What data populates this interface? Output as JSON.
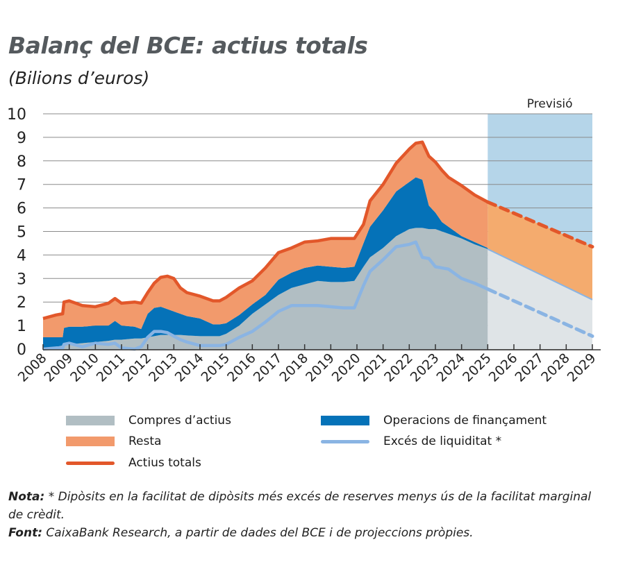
{
  "title": "Balanç del BCE: actius totals",
  "subtitle": "(Bilions d’euros)",
  "chart_data": {
    "type": "area",
    "title": "Balanç del BCE: actius totals",
    "ylabel": "(Bilions d’euros)",
    "ylim": [
      0,
      10
    ],
    "yticks": [
      "0",
      "1",
      "2",
      "3",
      "4",
      "5",
      "6",
      "7",
      "8",
      "9",
      "10"
    ],
    "xlim": [
      2008,
      2029
    ],
    "xticks": [
      "2008",
      "2009",
      "2010",
      "2011",
      "2012",
      "2013",
      "2014",
      "2015",
      "2016",
      "2017",
      "2018",
      "2019",
      "2020",
      "2021",
      "2022",
      "2023",
      "2024",
      "2025",
      "2026",
      "2027",
      "2028",
      "2029"
    ],
    "grid": true,
    "forecast_label": "Previsió",
    "forecast_range": [
      2025,
      2029
    ],
    "x": [
      2008,
      2008.5,
      2008.75,
      2008.8,
      2009,
      2009.5,
      2010,
      2010.5,
      2010.75,
      2011,
      2011.5,
      2011.75,
      2012,
      2012.25,
      2012.5,
      2012.75,
      2013,
      2013.25,
      2013.5,
      2014,
      2014.5,
      2014.75,
      2015,
      2015.5,
      2016,
      2016.5,
      2017,
      2017.5,
      2018,
      2018.5,
      2019,
      2019.5,
      2019.9,
      2020.25,
      2020.5,
      2021,
      2021.5,
      2022,
      2022.25,
      2022.5,
      2022.75,
      2023,
      2023.25,
      2023.5,
      2024,
      2024.5,
      2025
    ],
    "series": [
      {
        "name": "Compres d’actius",
        "color": "#b1bec3",
        "values": [
          0,
          0.1,
          0.15,
          0.15,
          0.2,
          0.25,
          0.3,
          0.35,
          0.4,
          0.4,
          0.45,
          0.45,
          0.5,
          0.55,
          0.6,
          0.6,
          0.6,
          0.6,
          0.58,
          0.55,
          0.55,
          0.55,
          0.65,
          1.0,
          1.5,
          1.9,
          2.3,
          2.6,
          2.75,
          2.9,
          2.85,
          2.85,
          2.9,
          3.5,
          3.9,
          4.3,
          4.8,
          5.1,
          5.15,
          5.15,
          5.1,
          5.1,
          5.0,
          4.9,
          4.7,
          4.45,
          4.25
        ]
      },
      {
        "name": "Operacions de finançament",
        "color": "#0572b8",
        "values": [
          0.5,
          0.4,
          0.35,
          0.75,
          0.75,
          0.7,
          0.7,
          0.65,
          0.8,
          0.6,
          0.5,
          0.4,
          1.0,
          1.2,
          1.2,
          1.1,
          1.0,
          0.9,
          0.82,
          0.75,
          0.5,
          0.5,
          0.45,
          0.45,
          0.4,
          0.4,
          0.65,
          0.65,
          0.7,
          0.65,
          0.65,
          0.6,
          0.6,
          1.0,
          1.3,
          1.6,
          1.9,
          2.0,
          2.15,
          2.05,
          1.0,
          0.7,
          0.4,
          0.3,
          0.1,
          0.1,
          0.05
        ]
      },
      {
        "name": "Resta",
        "color": "#f29a6c",
        "values": [
          0.8,
          0.95,
          1.0,
          1.1,
          1.1,
          0.9,
          0.8,
          0.95,
          0.95,
          0.95,
          1.05,
          1.1,
          0.9,
          1.05,
          1.25,
          1.4,
          1.4,
          1.1,
          1.0,
          0.95,
          1.0,
          1.0,
          1.1,
          1.15,
          1.0,
          1.15,
          1.15,
          1.05,
          1.1,
          1.05,
          1.2,
          1.25,
          1.2,
          0.8,
          1.1,
          1.1,
          1.2,
          1.4,
          1.45,
          1.6,
          2.1,
          2.15,
          2.2,
          2.1,
          2.15,
          2.0,
          1.95
        ]
      },
      {
        "name": "Actius totals",
        "color": "#e2572a",
        "values": [
          1.3,
          1.45,
          1.5,
          2.0,
          2.05,
          1.85,
          1.8,
          1.95,
          2.15,
          1.95,
          2.0,
          1.95,
          2.4,
          2.8,
          3.05,
          3.1,
          3.0,
          2.6,
          2.4,
          2.25,
          2.05,
          2.05,
          2.2,
          2.6,
          2.9,
          3.45,
          4.1,
          4.3,
          4.55,
          4.6,
          4.7,
          4.7,
          4.7,
          5.3,
          6.3,
          7.0,
          7.9,
          8.5,
          8.75,
          8.8,
          8.2,
          7.95,
          7.6,
          7.3,
          6.95,
          6.55,
          6.25
        ]
      },
      {
        "name": "Excés de liquiditat *",
        "color": "#8ab4e3",
        "values": [
          0,
          0.05,
          0.05,
          0.2,
          0.25,
          0.1,
          0.25,
          0.2,
          0.25,
          0.05,
          0,
          0.1,
          0.5,
          0.75,
          0.75,
          0.7,
          0.55,
          0.4,
          0.3,
          0.15,
          0.15,
          0.15,
          0.2,
          0.5,
          0.75,
          1.15,
          1.6,
          1.85,
          1.85,
          1.85,
          1.8,
          1.75,
          1.75,
          2.7,
          3.3,
          3.8,
          4.35,
          4.45,
          4.55,
          3.9,
          3.85,
          3.5,
          3.45,
          3.4,
          3.0,
          2.8,
          2.55
        ]
      }
    ],
    "forecast": {
      "x": [
        2025,
        2029
      ],
      "Actius totals": [
        6.25,
        4.35
      ],
      "Compres d’actius": [
        4.25,
        2.1
      ],
      "Excés de liquiditat *": [
        2.55,
        0.55
      ],
      "colors": {
        "resta": "#f4ab6e",
        "compres": "#dfe4e7",
        "shade": "#b5d5e9"
      }
    },
    "legend_position": "bottom"
  },
  "legend": {
    "compres": "Compres d’actius",
    "operacions": "Operacions de finançament",
    "resta": "Resta",
    "excess": "Excés de liquiditat *",
    "total": "Actius totals"
  },
  "notes": {
    "nota_label": "Nota:",
    "nota_text": " * Dipòsits en la facilitat de dipòsits més excés de reserves menys ús de la facilitat marginal de crèdit.",
    "font_label": "Font:",
    "font_text": " CaixaBank Research, a partir de dades del BCE i de projeccions pròpies."
  }
}
